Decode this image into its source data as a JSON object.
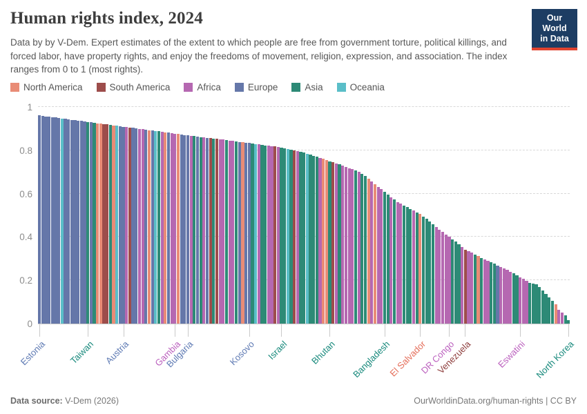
{
  "header": {
    "title": "Human rights index, 2024",
    "subtitle": "Data by by V-Dem. Expert estimates of the extent to which people are free from government torture, political killings, and forced labor, have property rights, and enjoy the freedoms of movement, religion, expression, and association. The index ranges from 0 to 1 (most rights).",
    "logo_line1": "Our World",
    "logo_line2": "in Data"
  },
  "legend": {
    "items": [
      {
        "label": "North America",
        "code": "N"
      },
      {
        "label": "South America",
        "code": "S"
      },
      {
        "label": "Africa",
        "code": "F"
      },
      {
        "label": "Europe",
        "code": "E"
      },
      {
        "label": "Asia",
        "code": "A"
      },
      {
        "label": "Oceania",
        "code": "O"
      }
    ]
  },
  "colors": {
    "bar": {
      "N": "#E98C76",
      "S": "#9D4D4B",
      "F": "#B568B1",
      "E": "#6577A9",
      "A": "#2D8A76",
      "O": "#5ABEC8"
    },
    "label": {
      "N": "#E56E5A",
      "S": "#8E3E3D",
      "F": "#BB60BE",
      "E": "#5D79B3",
      "A": "#17897C",
      "O": "#38AABA"
    }
  },
  "chart_data": {
    "type": "bar",
    "title": "Human rights index, 2024",
    "xlabel": "",
    "ylabel": "",
    "ylim": [
      0,
      1
    ],
    "yticks": [
      0,
      0.2,
      0.4,
      0.6,
      0.8,
      1
    ],
    "ytick_labels": [
      "0",
      "0.2",
      "0.4",
      "0.6",
      "0.8",
      "1"
    ],
    "grid": "dashed-horizontal",
    "legend_position": "top-left",
    "sort": "descending",
    "n_bars": 165,
    "continent_key": {
      "N": "North America",
      "S": "South America",
      "F": "Africa",
      "E": "Europe",
      "A": "Asia",
      "O": "Oceania"
    },
    "values": [
      0.962,
      0.96,
      0.957,
      0.955,
      0.953,
      0.951,
      0.949,
      0.947,
      0.945,
      0.943,
      0.941,
      0.939,
      0.937,
      0.935,
      0.933,
      0.931,
      0.929,
      0.927,
      0.925,
      0.923,
      0.921,
      0.919,
      0.917,
      0.915,
      0.913,
      0.911,
      0.909,
      0.907,
      0.905,
      0.903,
      0.901,
      0.899,
      0.897,
      0.895,
      0.893,
      0.891,
      0.889,
      0.887,
      0.885,
      0.883,
      0.881,
      0.879,
      0.877,
      0.875,
      0.873,
      0.871,
      0.869,
      0.867,
      0.865,
      0.863,
      0.861,
      0.859,
      0.857,
      0.856,
      0.855,
      0.853,
      0.851,
      0.849,
      0.847,
      0.845,
      0.843,
      0.841,
      0.839,
      0.837,
      0.835,
      0.833,
      0.831,
      0.829,
      0.827,
      0.825,
      0.823,
      0.821,
      0.819,
      0.817,
      0.815,
      0.812,
      0.809,
      0.806,
      0.803,
      0.8,
      0.797,
      0.793,
      0.789,
      0.785,
      0.78,
      0.775,
      0.77,
      0.765,
      0.76,
      0.755,
      0.75,
      0.745,
      0.74,
      0.735,
      0.73,
      0.724,
      0.718,
      0.712,
      0.706,
      0.7,
      0.69,
      0.68,
      0.668,
      0.656,
      0.644,
      0.632,
      0.62,
      0.608,
      0.596,
      0.584,
      0.572,
      0.562,
      0.553,
      0.545,
      0.537,
      0.529,
      0.521,
      0.513,
      0.505,
      0.495,
      0.483,
      0.47,
      0.458,
      0.446,
      0.434,
      0.423,
      0.412,
      0.401,
      0.39,
      0.378,
      0.366,
      0.354,
      0.34,
      0.333,
      0.327,
      0.32,
      0.312,
      0.304,
      0.297,
      0.29,
      0.283,
      0.276,
      0.269,
      0.262,
      0.255,
      0.248,
      0.24,
      0.232,
      0.224,
      0.215,
      0.206,
      0.197,
      0.188,
      0.184,
      0.18,
      0.168,
      0.152,
      0.136,
      0.12,
      0.104,
      0.09,
      0.064,
      0.052,
      0.038,
      0.016
    ],
    "continents": "EEEEEEEOEEEEEEEAEANNSSANOEEFSEEFFENEOAFNEFFNEEEFAEAFESASFFAFFAENEEAOFAAFFSFAAOASFAAOAAAFNNASFAFFFFAFAANFNFFAAFAFFAAAFANAAAAFFFFFAAAFSFFANAFFAAEFFFFAAFFFAAAAAAAANFFAA",
    "labeled_countries": [
      {
        "name": "Estonia",
        "bar": 1,
        "continent": "E",
        "value": 0.962
      },
      {
        "name": "Taiwan",
        "bar": 16,
        "continent": "A",
        "value": 0.931
      },
      {
        "name": "Austria",
        "bar": 27,
        "continent": "E",
        "value": 0.909
      },
      {
        "name": "Gambia",
        "bar": 43,
        "continent": "F",
        "value": 0.877
      },
      {
        "name": "Bulgaria",
        "bar": 47,
        "continent": "E",
        "value": 0.869
      },
      {
        "name": "Kosovo",
        "bar": 66,
        "continent": "E",
        "value": 0.833
      },
      {
        "name": "Israel",
        "bar": 76,
        "continent": "A",
        "value": 0.812
      },
      {
        "name": "Bhutan",
        "bar": 91,
        "continent": "A",
        "value": 0.75
      },
      {
        "name": "Bangladesh",
        "bar": 108,
        "continent": "A",
        "value": 0.608
      },
      {
        "name": "El Salvador",
        "bar": 119,
        "continent": "N",
        "value": 0.505
      },
      {
        "name": "DR Congo",
        "bar": 128,
        "continent": "F",
        "value": 0.401
      },
      {
        "name": "Venezuela",
        "bar": 133,
        "continent": "S",
        "value": 0.34
      },
      {
        "name": "Eswatini",
        "bar": 150,
        "continent": "F",
        "value": 0.215
      },
      {
        "name": "North Korea",
        "bar": 165,
        "continent": "A",
        "value": 0.016
      }
    ]
  },
  "footer": {
    "source_label": "Data source:",
    "source_value": " V-Dem (2026)",
    "right_text": "OurWorldinData.org/human-rights | CC BY"
  }
}
